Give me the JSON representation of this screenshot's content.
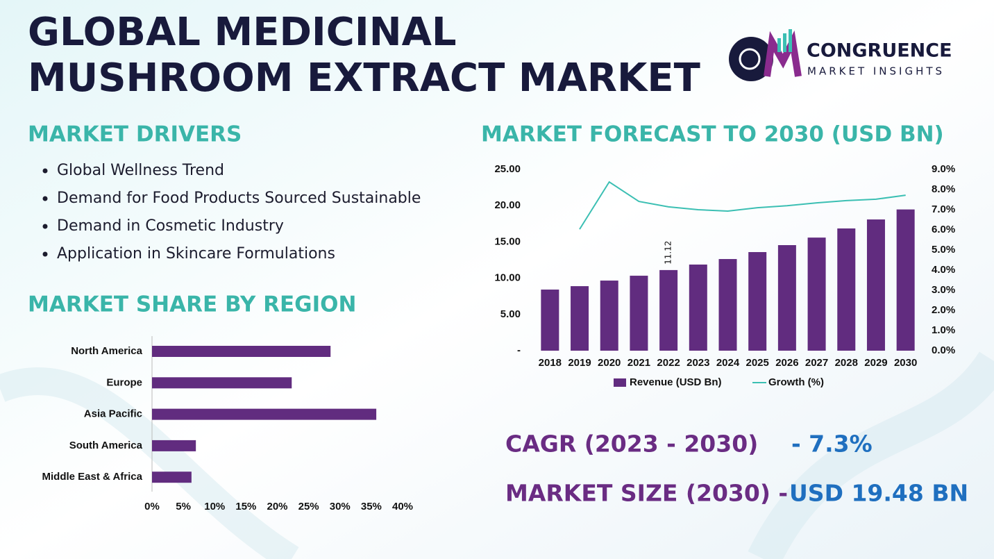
{
  "title_lines": [
    "GLOBAL MEDICINAL",
    "MUSHROOM EXTRACT MARKET"
  ],
  "logo": {
    "name": "CONGRUENCE",
    "tagline": "MARKET INSIGHTS"
  },
  "drivers": {
    "heading": "MARKET DRIVERS",
    "items": [
      "Global Wellness Trend",
      "Demand for Food Products Sourced Sustainable",
      "Demand in Cosmetic Industry",
      "Application in Skincare Formulations"
    ]
  },
  "cagr": {
    "label": "CAGR (2023 - 2030)",
    "value": "- 7.3%"
  },
  "market_size": {
    "label": "MARKET SIZE (2030) -",
    "value": "USD 19.48 BN"
  },
  "chart_data": [
    {
      "type": "hbar",
      "title": "MARKET SHARE BY REGION",
      "categories": [
        "North America",
        "Europe",
        "Asia Pacific",
        "South America",
        "Middle East & Africa"
      ],
      "values": [
        28.5,
        22.3,
        35.8,
        7,
        6.3
      ],
      "color": "#612c7f",
      "xlim": [
        0,
        40
      ],
      "xticks": [
        {
          "value": 0,
          "label": "0%"
        },
        {
          "value": 5,
          "label": "5%"
        },
        {
          "value": 10,
          "label": "10%"
        },
        {
          "value": 15,
          "label": "15%"
        },
        {
          "value": 20,
          "label": "20%"
        },
        {
          "value": 25,
          "label": "25%"
        },
        {
          "value": 30,
          "label": "30%"
        },
        {
          "value": 35,
          "label": "35%"
        },
        {
          "value": 40,
          "label": "40%"
        }
      ],
      "grid": false
    },
    {
      "type": "bar",
      "title": "MARKET FORECAST TO 2030 (USD BN)",
      "categories": [
        "2018",
        "2019",
        "2020",
        "2021",
        "2022",
        "2023",
        "2024",
        "2025",
        "2026",
        "2027",
        "2028",
        "2029",
        "2030"
      ],
      "series": [
        {
          "name": "Revenue (USD Bn)",
          "type": "bar",
          "color": "#612c7f",
          "values": [
            8.43,
            8.9,
            9.67,
            10.34,
            11.12,
            11.88,
            12.64,
            13.6,
            14.56,
            15.6,
            16.86,
            18.1,
            19.48
          ],
          "value_labels": [
            null,
            null,
            null,
            null,
            "11.12",
            null,
            null,
            null,
            null,
            null,
            null,
            null,
            null
          ]
        },
        {
          "name": "Growth (%)",
          "type": "line",
          "axis": "y2",
          "color": "#3bbfb3",
          "values": [
            null,
            6.03,
            8.38,
            7.41,
            7.14,
            7.0,
            6.93,
            7.1,
            7.2,
            7.34,
            7.45,
            7.52,
            7.72
          ]
        }
      ],
      "ylim": [
        0,
        25
      ],
      "yticks": [
        {
          "value": 0,
          "label": "-"
        },
        {
          "value": 5,
          "label": "5.00"
        },
        {
          "value": 10,
          "label": "10.00"
        },
        {
          "value": 15,
          "label": "15.00"
        },
        {
          "value": 20,
          "label": "20.00"
        },
        {
          "value": 25,
          "label": "25.00"
        }
      ],
      "y2lim": [
        0,
        9
      ],
      "y2ticks": [
        {
          "value": 0,
          "label": "0.0%"
        },
        {
          "value": 1,
          "label": "1.0%"
        },
        {
          "value": 2,
          "label": "2.0%"
        },
        {
          "value": 3,
          "label": "3.0%"
        },
        {
          "value": 4,
          "label": "4.0%"
        },
        {
          "value": 5,
          "label": "5.0%"
        },
        {
          "value": 6,
          "label": "6.0%"
        },
        {
          "value": 7,
          "label": "7.0%"
        },
        {
          "value": 8,
          "label": "8.0%"
        },
        {
          "value": 9,
          "label": "9.0%"
        }
      ],
      "grid": false,
      "legend": "bottom"
    }
  ]
}
